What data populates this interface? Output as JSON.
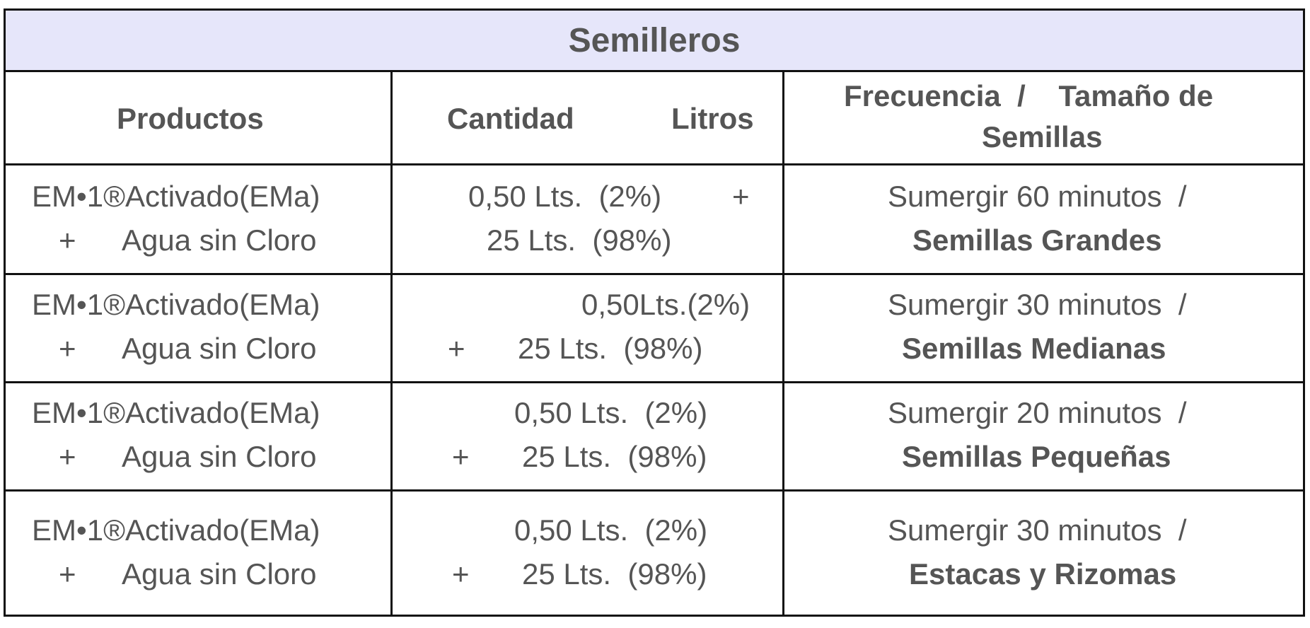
{
  "title": "Semilleros",
  "headers": {
    "productos": "Productos",
    "cantidad": "Cantidad",
    "litros": "Litros",
    "frecuencia_line1": "Frecuencia  /    Tamaño de",
    "frecuencia_line2": "Semillas"
  },
  "rows": [
    {
      "product_line1": "EM•1®Activado(EMa)",
      "product_plus": "+",
      "product_line2": "Agua sin Cloro",
      "qty_line1": "0,50 Lts.  (2%)",
      "qty_plus": "+",
      "qty_line2": "25 Lts.  (98%)",
      "freq_line1": "Sumergir 60 minutos  /",
      "freq_line2": "Semillas Grandes"
    },
    {
      "product_line1": "EM•1®Activado(EMa)",
      "product_plus": "+",
      "product_line2": "Agua sin Cloro",
      "qty_line1": "0,50Lts.(2%)",
      "qty_plus": "+",
      "qty_line2": "25 Lts.  (98%)",
      "freq_line1": "Sumergir 30 minutos  /",
      "freq_line2": "Semillas Medianas"
    },
    {
      "product_line1": "EM•1®Activado(EMa)",
      "product_plus": "+",
      "product_line2": "Agua sin Cloro",
      "qty_line1": "0,50 Lts.  (2%)",
      "qty_plus": "+",
      "qty_line2": "25 Lts.  (98%)",
      "freq_line1": "Sumergir 20 minutos  /",
      "freq_line2": "Semillas Pequeñas"
    },
    {
      "product_line1": "EM•1®Activado(EMa)",
      "product_plus": "+",
      "product_line2": "Agua sin Cloro",
      "qty_line1": "0,50 Lts.  (2%)",
      "qty_plus": "+",
      "qty_line2": "25 Lts.  (98%)",
      "freq_line1": "Sumergir 30 minutos  /",
      "freq_line2": "Estacas y Rizomas"
    }
  ]
}
